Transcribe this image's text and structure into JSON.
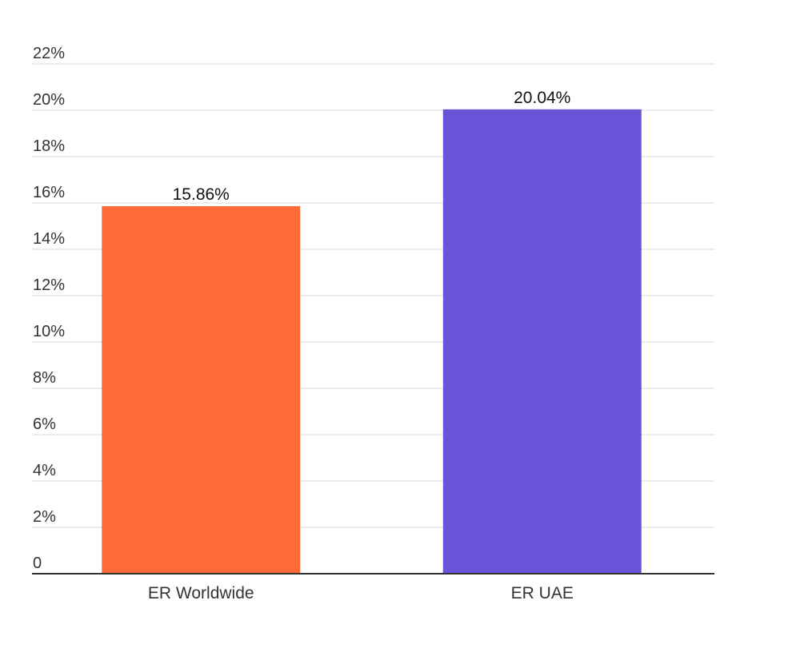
{
  "chart_data": {
    "type": "bar",
    "categories": [
      "ER Worldwide",
      "ER UAE"
    ],
    "values": [
      15.86,
      20.04
    ],
    "data_labels": [
      "15.86%",
      "20.04%"
    ],
    "colors": [
      "#ff6b38",
      "#6b53d9"
    ],
    "y_tick_labels": [
      "0",
      "2%",
      "4%",
      "6%",
      "8%",
      "10%",
      "12%",
      "14%",
      "16%",
      "18%",
      "20%",
      "22%"
    ],
    "y_ticks": [
      0,
      2,
      4,
      6,
      8,
      10,
      12,
      14,
      16,
      18,
      20,
      22
    ],
    "ylim": [
      0,
      22
    ],
    "grid": true,
    "legend": "none",
    "title": "",
    "xlabel": "",
    "ylabel": ""
  }
}
